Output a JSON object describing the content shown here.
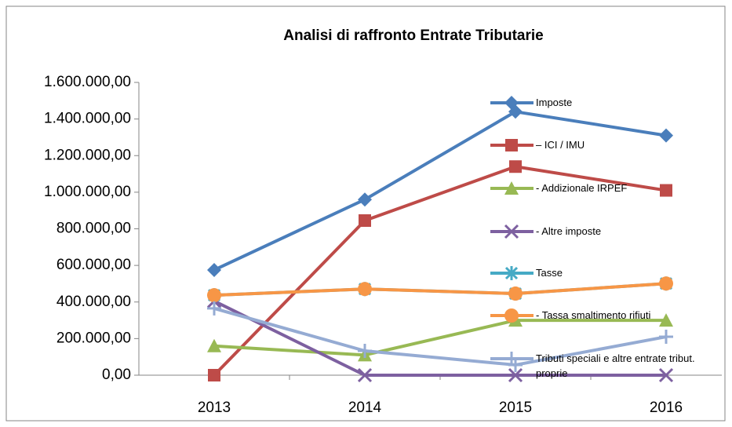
{
  "chart_data": {
    "type": "line",
    "title": "Analisi di raffronto Entrate Tributarie",
    "categories": [
      "2013",
      "2014",
      "2015",
      "2016"
    ],
    "ylim": [
      0,
      1600000
    ],
    "yticks": [
      {
        "value": 0,
        "label": "0,00"
      },
      {
        "value": 200000,
        "label": "200.000,00"
      },
      {
        "value": 400000,
        "label": "400.000,00"
      },
      {
        "value": 600000,
        "label": "600.000,00"
      },
      {
        "value": 800000,
        "label": "800.000,00"
      },
      {
        "value": 1000000,
        "label": "1.000.000,00"
      },
      {
        "value": 1200000,
        "label": "1.200.000,00"
      },
      {
        "value": 1400000,
        "label": "1.400.000,00"
      },
      {
        "value": 1600000,
        "label": "1.600.000,00"
      }
    ],
    "grid": false,
    "series": [
      {
        "name": "Imposte",
        "color": "#4a7ebb",
        "marker": "diamond",
        "values": [
          575000,
          960000,
          1440000,
          1310000
        ]
      },
      {
        "name": "– ICI / IMU",
        "color": "#be4b48",
        "marker": "square",
        "values": [
          0,
          845000,
          1140000,
          1010000
        ]
      },
      {
        "name": "- Addizionale IRPEF",
        "color": "#98b954",
        "marker": "triangle",
        "values": [
          160000,
          110000,
          300000,
          300000
        ]
      },
      {
        "name": "- Altre imposte",
        "color": "#7d60a0",
        "marker": "x",
        "values": [
          405000,
          0,
          0,
          0
        ]
      },
      {
        "name": "Tasse",
        "color": "#46aac5",
        "marker": "star",
        "values": [
          437000,
          471000,
          446000,
          501000
        ]
      },
      {
        "name": "- Tassa smaltimento rifiuti",
        "color": "#f79646",
        "marker": "circle",
        "values": [
          437000,
          471000,
          446000,
          501000
        ]
      },
      {
        "name": "Tributi speciali e altre entrate tribut. proprie",
        "color": "#95abd3",
        "marker": "plus",
        "values": [
          365000,
          133000,
          56000,
          210000
        ]
      }
    ]
  }
}
